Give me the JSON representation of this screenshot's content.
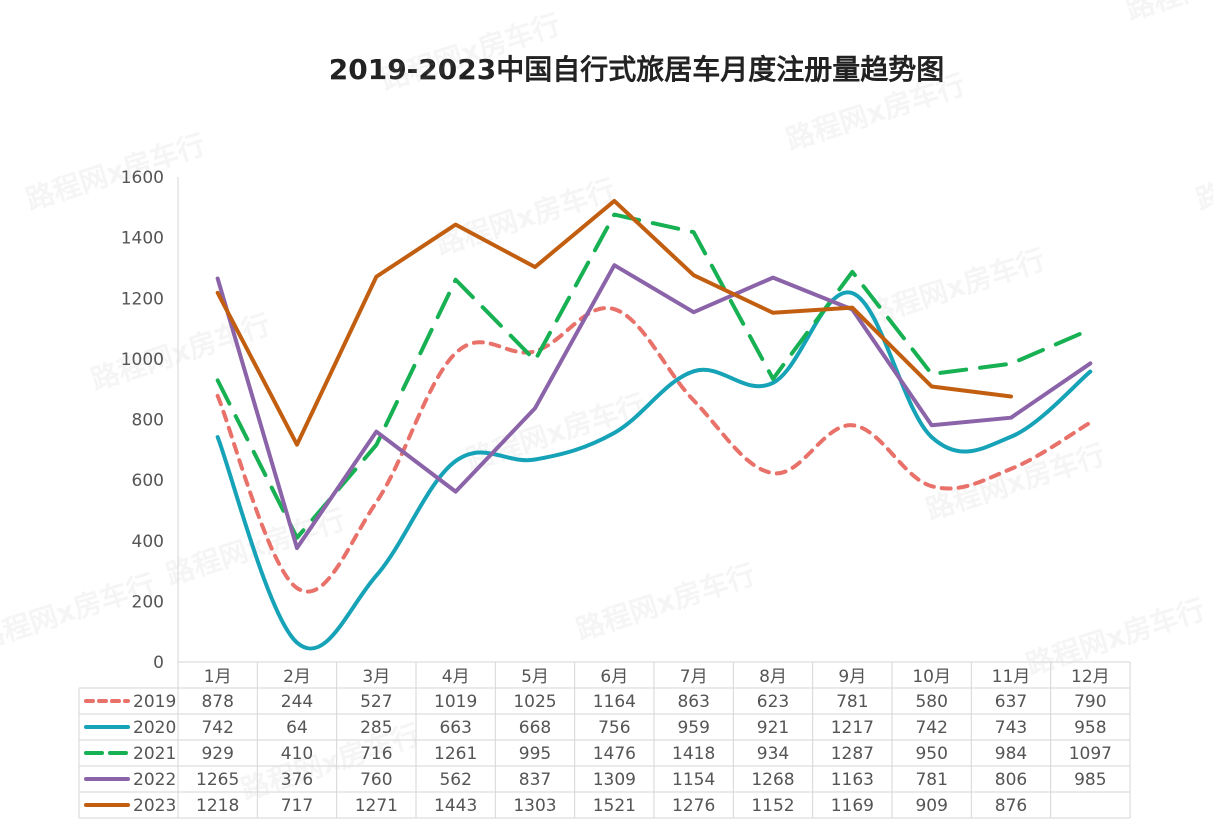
{
  "chart_data": {
    "type": "line",
    "title": "2019-2023中国自行式旅居车月度注册量趋势图",
    "categories": [
      "1月",
      "2月",
      "3月",
      "4月",
      "5月",
      "6月",
      "7月",
      "8月",
      "9月",
      "10月",
      "11月",
      "12月"
    ],
    "ylim": [
      0,
      1600
    ],
    "yticks": [
      "0",
      "200",
      "400",
      "600",
      "800",
      "1000",
      "1200",
      "1400",
      "1600"
    ],
    "legend_placement": "bottom-table",
    "series": [
      {
        "name": "2019",
        "color": "#e8716a",
        "style": "dotted-smooth",
        "values": [
          878,
          244,
          527,
          1019,
          1025,
          1164,
          863,
          623,
          781,
          580,
          637,
          790
        ]
      },
      {
        "name": "2020",
        "color": "#16a3b8",
        "style": "solid-smooth",
        "values": [
          742,
          64,
          285,
          663,
          668,
          756,
          959,
          921,
          1217,
          742,
          743,
          958
        ]
      },
      {
        "name": "2021",
        "color": "#17b052",
        "style": "dashed",
        "values": [
          929,
          410,
          716,
          1261,
          995,
          1476,
          1418,
          934,
          1287,
          950,
          984,
          1097
        ]
      },
      {
        "name": "2022",
        "color": "#8b63a8",
        "style": "solid",
        "values": [
          1265,
          376,
          760,
          562,
          837,
          1309,
          1154,
          1268,
          1163,
          781,
          806,
          985
        ]
      },
      {
        "name": "2023",
        "color": "#c25e10",
        "style": "solid",
        "values": [
          1218,
          717,
          1271,
          1443,
          1303,
          1521,
          1276,
          1152,
          1169,
          909,
          876,
          null
        ]
      }
    ]
  },
  "watermark": "路程网x房车行"
}
